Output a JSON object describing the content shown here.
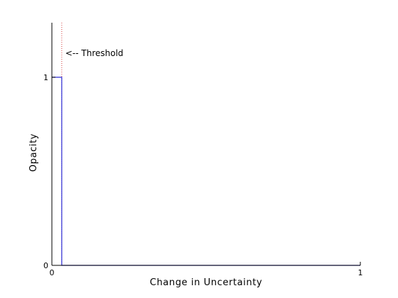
{
  "chart_data": {
    "type": "line",
    "title": "",
    "xlabel": "Change in Uncertainty",
    "ylabel": "Opacity",
    "xlim": [
      0,
      1
    ],
    "ylim": [
      0,
      1.29
    ],
    "x_ticks": [
      0,
      1
    ],
    "x_tick_labels": [
      "0",
      "1"
    ],
    "y_ticks": [
      0,
      1
    ],
    "y_tick_labels": [
      "0",
      "1"
    ],
    "grid": false,
    "series": [
      {
        "x": [
          0,
          0.032,
          0.032,
          1
        ],
        "y": [
          1,
          1,
          0,
          0
        ],
        "color": "#2b2bd6"
      }
    ],
    "threshold": {
      "x": 0.032,
      "label": "<-- Threshold",
      "color": "#d23c3c"
    }
  }
}
